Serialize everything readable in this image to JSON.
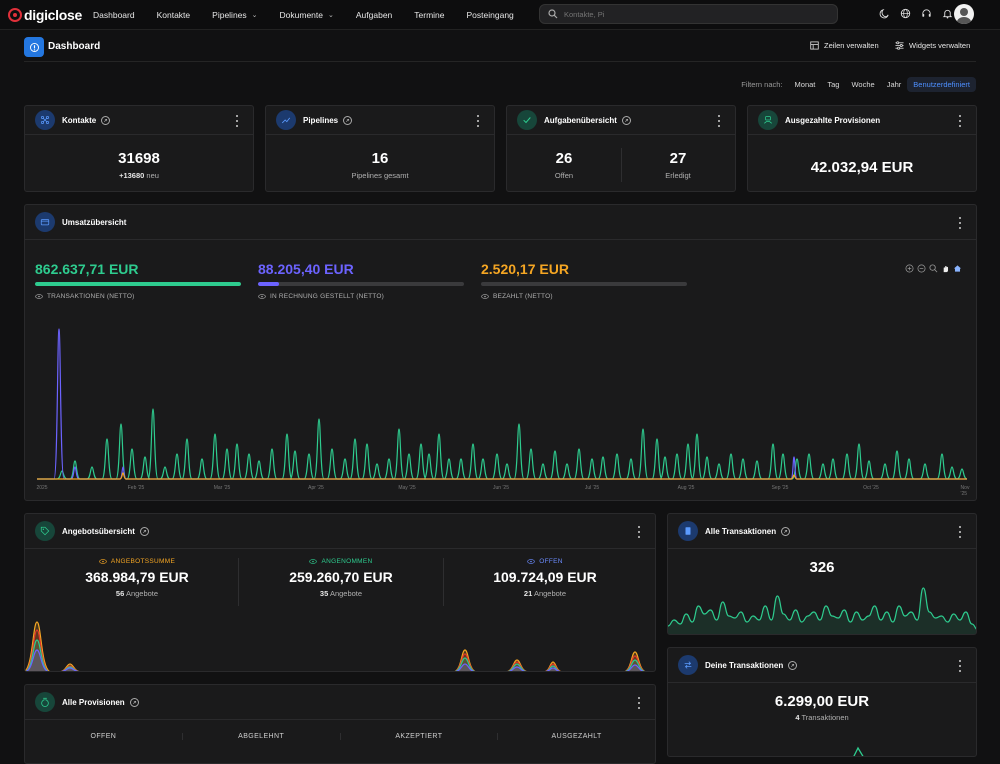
{
  "app": {
    "brand": "digiclose",
    "nav": [
      {
        "label": "Dashboard",
        "dropdown": false
      },
      {
        "label": "Kontakte",
        "dropdown": false
      },
      {
        "label": "Pipelines",
        "dropdown": true
      },
      {
        "label": "Dokumente",
        "dropdown": true
      },
      {
        "label": "Aufgaben",
        "dropdown": false
      },
      {
        "label": "Termine",
        "dropdown": false
      },
      {
        "label": "Posteingang",
        "dropdown": false
      }
    ],
    "search_placeholder": "Kontakte, Pi",
    "top_icons": [
      "moon-icon",
      "globe-icon",
      "headset-icon",
      "bell-icon",
      "gear-icon"
    ]
  },
  "page": {
    "title": "Dashboard",
    "manage_rows": "Zeilen verwalten",
    "manage_widgets": "Widgets verwalten"
  },
  "filter": {
    "label": "Filtern nach:",
    "options": [
      "Monat",
      "Tag",
      "Woche",
      "Jahr",
      "Benutzerdefiniert"
    ],
    "active": "Benutzerdefiniert"
  },
  "widgets": {
    "kontakte": {
      "title": "Kontakte",
      "value": "31698",
      "delta": "+13680",
      "delta_suffix": "neu"
    },
    "pipelines": {
      "title": "Pipelines",
      "value": "16",
      "caption": "Pipelines gesamt"
    },
    "aufgaben": {
      "title": "Aufgabenübersicht",
      "open_value": "26",
      "open_label": "Offen",
      "done_value": "27",
      "done_label": "Erledigt"
    },
    "provisionen_paid": {
      "title": "Ausgezahlte Provisionen",
      "value": "42.032,94 EUR"
    },
    "umsatz": {
      "title": "Umsatzübersicht",
      "metrics": [
        {
          "value": "862.637,71 EUR",
          "label": "TRANSAKTIONEN (NETTO)",
          "color": "#2ecc8f",
          "fill": 1.0
        },
        {
          "value": "88.205,40 EUR",
          "label": "IN RECHNUNG GESTELLT (NETTO)",
          "color": "#6c63ff",
          "fill": 0.1
        },
        {
          "value": "2.520,17 EUR",
          "label": "BEZAHLT (NETTO)",
          "color": "#f5a623",
          "fill": 0.0
        }
      ],
      "x_labels": [
        "2025",
        "Feb '25",
        "Mar '25",
        "Apr '25",
        "May '25",
        "Jun '25",
        "Jul '25",
        "Aug '25",
        "Sep '25",
        "Oct '25",
        "Nov '25"
      ]
    },
    "angebote": {
      "title": "Angebotsübersicht",
      "cols": [
        {
          "caption": "ANGEBOTSSUMME",
          "color": "#f5a623",
          "value": "368.984,79 EUR",
          "count": "56",
          "count_label": "Angebote"
        },
        {
          "caption": "ANGENOMMEN",
          "color": "#2ecc8f",
          "value": "259.260,70 EUR",
          "count": "35",
          "count_label": "Angebote"
        },
        {
          "caption": "OFFEN",
          "color": "#6c8cff",
          "value": "109.724,09 EUR",
          "count": "21",
          "count_label": "Angebote"
        }
      ]
    },
    "alle_transaktionen": {
      "title": "Alle Transaktionen",
      "value": "326"
    },
    "deine_transaktionen": {
      "title": "Deine Transaktionen",
      "value": "6.299,00 EUR",
      "count": "4",
      "count_label": "Transaktionen"
    },
    "alle_provisionen": {
      "title": "Alle Provisionen",
      "cols": [
        "OFFEN",
        "ABGELEHNT",
        "AKZEPTIERT",
        "AUSGEZAHLT"
      ]
    }
  },
  "colors": {
    "accent": "#2477e0",
    "green": "#2ecc8f",
    "purple": "#6c63ff",
    "orange": "#f5a623"
  }
}
